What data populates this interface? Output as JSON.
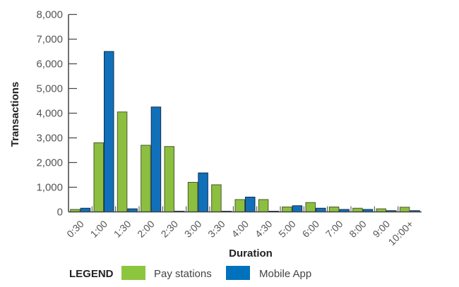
{
  "chart_data": {
    "type": "bar",
    "title": "",
    "xlabel": "Duration",
    "ylabel": "Transactions",
    "ylim": [
      0,
      8000
    ],
    "yticks": [
      0,
      1000,
      2000,
      3000,
      4000,
      5000,
      6000,
      7000,
      8000
    ],
    "ytick_labels": [
      "0",
      "1,000",
      "2,000",
      "3,000",
      "4,000",
      "5,000",
      "6,000",
      "7,000",
      "8,000"
    ],
    "grid": false,
    "legend_position": "bottom-left",
    "legend_title": "LEGEND",
    "categories": [
      "0:30",
      "1:00",
      "1:30",
      "2:00",
      "2:30",
      "3:00",
      "3:30",
      "4:00",
      "4:30",
      "5:00",
      "6:00",
      "7:00",
      "8:00",
      "9:00",
      "10:00+"
    ],
    "series": [
      {
        "name": "Pay stations",
        "color": "#8cbf3f",
        "values": [
          100,
          2800,
          4050,
          2700,
          2650,
          1200,
          1100,
          500,
          500,
          200,
          380,
          200,
          150,
          125,
          190
        ]
      },
      {
        "name": "Mobile App",
        "color": "#1170b9",
        "values": [
          150,
          6500,
          125,
          4250,
          30,
          1580,
          20,
          600,
          20,
          250,
          150,
          100,
          100,
          50,
          50
        ]
      }
    ]
  }
}
